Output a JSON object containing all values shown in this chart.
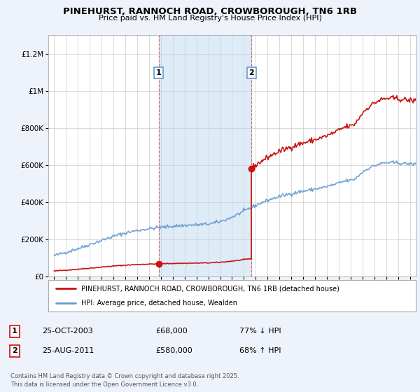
{
  "title": "PINEHURST, RANNOCH ROAD, CROWBOROUGH, TN6 1RB",
  "subtitle": "Price paid vs. HM Land Registry's House Price Index (HPI)",
  "background_color": "#eef2fa",
  "plot_bg_color": "#ffffff",
  "hpi_color": "#6699cc",
  "price_color": "#cc1111",
  "sale1_date": 2003.82,
  "sale1_price": 68000,
  "sale1_label": "1",
  "sale2_date": 2011.65,
  "sale2_price": 580000,
  "sale2_label": "2",
  "legend_line1": "PINEHURST, RANNOCH ROAD, CROWBOROUGH, TN6 1RB (detached house)",
  "legend_line2": "HPI: Average price, detached house, Wealden",
  "note1_num": "1",
  "note1_date": "25-OCT-2003",
  "note1_price": "£68,000",
  "note1_pct": "77% ↓ HPI",
  "note2_num": "2",
  "note2_date": "25-AUG-2011",
  "note2_price": "£580,000",
  "note2_pct": "68% ↑ HPI",
  "footer": "Contains HM Land Registry data © Crown copyright and database right 2025.\nThis data is licensed under the Open Government Licence v3.0.",
  "ylim_max": 1300000,
  "xlim_min": 1994.5,
  "xlim_max": 2025.5
}
